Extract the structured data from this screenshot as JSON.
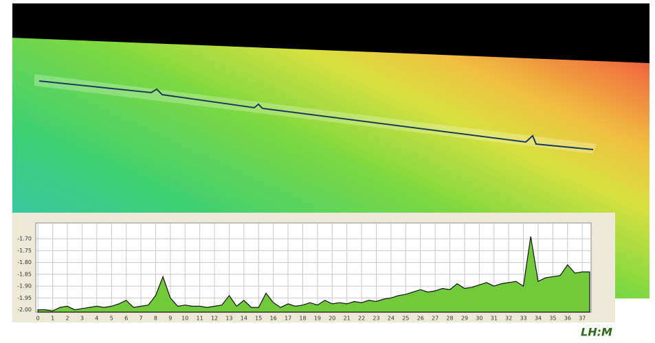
{
  "chart_data": {
    "type": "area",
    "x": [
      0,
      0.5,
      1,
      1.5,
      2,
      2.5,
      3,
      3.5,
      4,
      4.5,
      5,
      5.5,
      6,
      6.5,
      7,
      7.5,
      8,
      8.5,
      9,
      9.5,
      10,
      10.5,
      11,
      11.5,
      12,
      12.5,
      13,
      13.5,
      14,
      14.5,
      15,
      15.5,
      16,
      16.5,
      17,
      17.5,
      18,
      18.5,
      19,
      19.5,
      20,
      20.5,
      21,
      21.5,
      22,
      22.5,
      23,
      23.5,
      24,
      24.5,
      25,
      25.5,
      26,
      26.5,
      27,
      27.5,
      28,
      28.5,
      29,
      29.5,
      30,
      30.5,
      31,
      31.5,
      32,
      32.5,
      33,
      33.5,
      34,
      34.5,
      35,
      35.5,
      36,
      36.5,
      37,
      37.5
    ],
    "values": [
      -2.0,
      -2.0,
      -2.005,
      -1.99,
      -1.985,
      -2.0,
      -1.995,
      -1.99,
      -1.985,
      -1.99,
      -1.985,
      -1.975,
      -1.96,
      -1.99,
      -1.985,
      -1.98,
      -1.94,
      -1.86,
      -1.95,
      -1.985,
      -1.98,
      -1.985,
      -1.985,
      -1.99,
      -1.985,
      -1.98,
      -1.94,
      -1.985,
      -1.96,
      -1.99,
      -1.99,
      -1.93,
      -1.97,
      -1.99,
      -1.975,
      -1.985,
      -1.98,
      -1.97,
      -1.98,
      -1.96,
      -1.975,
      -1.97,
      -1.975,
      -1.965,
      -1.97,
      -1.96,
      -1.965,
      -1.955,
      -1.95,
      -1.94,
      -1.935,
      -1.925,
      -1.915,
      -1.925,
      -1.92,
      -1.91,
      -1.915,
      -1.89,
      -1.91,
      -1.905,
      -1.895,
      -1.885,
      -1.9,
      -1.89,
      -1.885,
      -1.88,
      -1.9,
      -1.69,
      -1.88,
      -1.865,
      -1.86,
      -1.855,
      -1.81,
      -1.845,
      -1.84,
      -1.84
    ],
    "color": "#72c93a",
    "xlim": [
      -0.15,
      37.6
    ],
    "ylim": [
      -2.01,
      -1.633
    ],
    "xticks": [
      0,
      1,
      2,
      3,
      4,
      5,
      6,
      7,
      8,
      9,
      10,
      11,
      12,
      13,
      14,
      15,
      16,
      17,
      18,
      19,
      20,
      21,
      22,
      23,
      24,
      25,
      26,
      27,
      28,
      29,
      30,
      31,
      32,
      33,
      34,
      35,
      36,
      37
    ],
    "yticks": [
      {
        "value": -1.7,
        "label": "-1.70"
      },
      {
        "value": -1.75,
        "label": "-1.75"
      },
      {
        "value": -1.8,
        "label": "-1.80"
      },
      {
        "value": -1.85,
        "label": "-1.85"
      },
      {
        "value": -1.9,
        "label": "-1.90"
      },
      {
        "value": -1.95,
        "label": "-1.95"
      },
      {
        "value": -2.0,
        "label": "-2.00"
      }
    ],
    "grid": true
  },
  "brand": "LH:M"
}
